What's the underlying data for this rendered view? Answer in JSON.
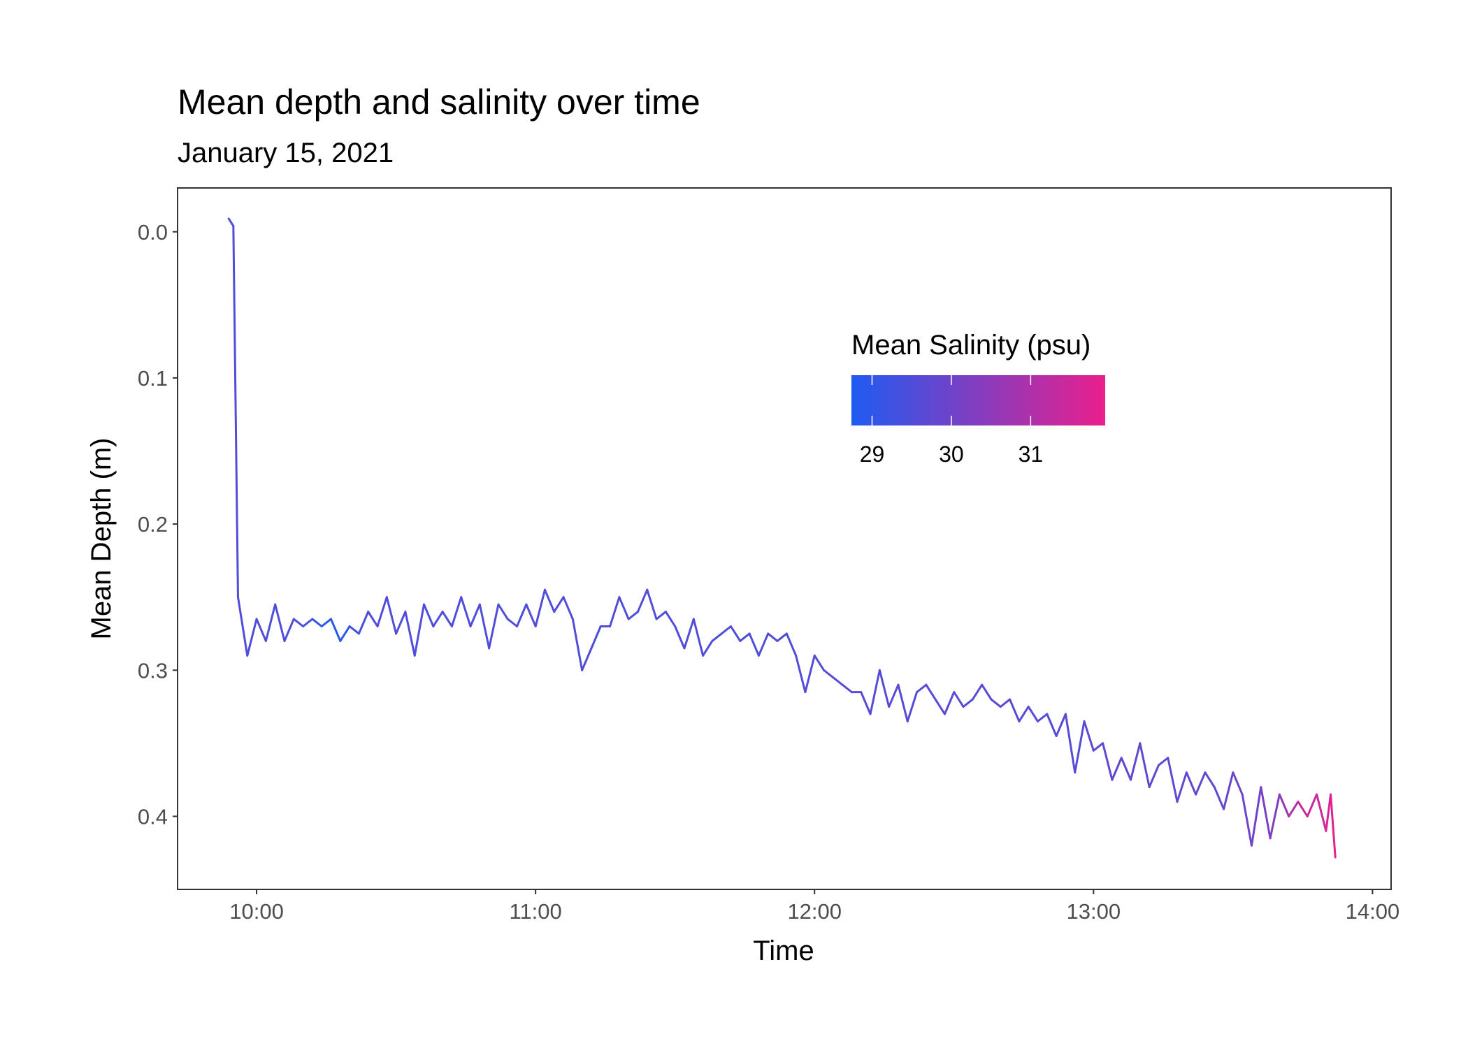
{
  "chart_data": {
    "type": "line",
    "title": "Mean depth and salinity over time",
    "subtitle": "January 15, 2021",
    "x_label": "Time",
    "y_label": "Mean Depth (m)",
    "x": [
      "09:54",
      "09:55",
      "09:56",
      "09:58",
      "10:00",
      "10:02",
      "10:04",
      "10:06",
      "10:08",
      "10:10",
      "10:12",
      "10:14",
      "10:16",
      "10:18",
      "10:20",
      "10:22",
      "10:24",
      "10:26",
      "10:28",
      "10:30",
      "10:32",
      "10:34",
      "10:36",
      "10:38",
      "10:40",
      "10:42",
      "10:44",
      "10:46",
      "10:48",
      "10:50",
      "10:52",
      "10:54",
      "10:56",
      "10:58",
      "11:00",
      "11:02",
      "11:04",
      "11:06",
      "11:08",
      "11:10",
      "11:12",
      "11:14",
      "11:16",
      "11:18",
      "11:20",
      "11:22",
      "11:24",
      "11:26",
      "11:28",
      "11:30",
      "11:32",
      "11:34",
      "11:36",
      "11:38",
      "11:40",
      "11:42",
      "11:44",
      "11:46",
      "11:48",
      "11:50",
      "11:52",
      "11:54",
      "11:56",
      "11:58",
      "12:00",
      "12:02",
      "12:04",
      "12:06",
      "12:08",
      "12:10",
      "12:12",
      "12:14",
      "12:16",
      "12:18",
      "12:20",
      "12:22",
      "12:24",
      "12:26",
      "12:28",
      "12:30",
      "12:32",
      "12:34",
      "12:36",
      "12:38",
      "12:40",
      "12:42",
      "12:44",
      "12:46",
      "12:48",
      "12:50",
      "12:52",
      "12:54",
      "12:56",
      "12:58",
      "13:00",
      "13:02",
      "13:04",
      "13:06",
      "13:08",
      "13:10",
      "13:12",
      "13:14",
      "13:16",
      "13:18",
      "13:20",
      "13:22",
      "13:24",
      "13:26",
      "13:28",
      "13:30",
      "13:32",
      "13:34",
      "13:36",
      "13:38",
      "13:40",
      "13:42",
      "13:44",
      "13:46",
      "13:48",
      "13:50",
      "13:51",
      "13:52"
    ],
    "values": [
      -0.009,
      -0.004,
      0.25,
      0.29,
      0.265,
      0.28,
      0.255,
      0.28,
      0.265,
      0.27,
      0.265,
      0.27,
      0.265,
      0.28,
      0.27,
      0.275,
      0.26,
      0.27,
      0.25,
      0.275,
      0.26,
      0.29,
      0.255,
      0.27,
      0.26,
      0.27,
      0.25,
      0.27,
      0.255,
      0.285,
      0.255,
      0.265,
      0.27,
      0.255,
      0.27,
      0.245,
      0.26,
      0.25,
      0.265,
      0.3,
      0.285,
      0.27,
      0.27,
      0.25,
      0.265,
      0.26,
      0.245,
      0.265,
      0.26,
      0.27,
      0.285,
      0.265,
      0.29,
      0.28,
      0.275,
      0.27,
      0.28,
      0.275,
      0.29,
      0.275,
      0.28,
      0.275,
      0.29,
      0.315,
      0.29,
      0.3,
      0.305,
      0.31,
      0.315,
      0.315,
      0.33,
      0.3,
      0.325,
      0.31,
      0.335,
      0.315,
      0.31,
      0.32,
      0.33,
      0.315,
      0.325,
      0.32,
      0.31,
      0.32,
      0.325,
      0.32,
      0.335,
      0.325,
      0.335,
      0.33,
      0.345,
      0.33,
      0.37,
      0.335,
      0.355,
      0.35,
      0.375,
      0.36,
      0.375,
      0.35,
      0.38,
      0.365,
      0.36,
      0.39,
      0.37,
      0.385,
      0.37,
      0.38,
      0.395,
      0.37,
      0.385,
      0.42,
      0.38,
      0.415,
      0.385,
      0.4,
      0.39,
      0.4,
      0.385,
      0.41,
      0.385,
      0.428
    ],
    "color_values": [
      29.5,
      29.5,
      29.5,
      29.5,
      29.5,
      29.5,
      29.5,
      29.5,
      29.5,
      29.5,
      29.2,
      29.0,
      28.9,
      28.8,
      29.1,
      29.3,
      29.5,
      29.5,
      29.5,
      29.5,
      29.5,
      29.5,
      29.5,
      29.5,
      29.5,
      29.5,
      29.5,
      29.5,
      29.5,
      29.5,
      29.5,
      29.5,
      29.5,
      29.5,
      29.5,
      29.5,
      29.5,
      29.5,
      29.5,
      29.5,
      29.5,
      29.5,
      29.5,
      29.5,
      29.5,
      29.5,
      29.5,
      29.5,
      29.5,
      29.5,
      29.5,
      29.5,
      29.5,
      29.5,
      29.5,
      29.5,
      29.5,
      29.5,
      29.5,
      29.5,
      29.5,
      29.5,
      29.5,
      29.5,
      29.6,
      29.6,
      29.6,
      29.6,
      29.6,
      29.6,
      29.6,
      29.6,
      29.6,
      29.6,
      29.6,
      29.6,
      29.6,
      29.6,
      29.6,
      29.6,
      29.6,
      29.6,
      29.6,
      29.6,
      29.6,
      29.6,
      29.6,
      29.6,
      29.6,
      29.6,
      29.6,
      29.6,
      29.6,
      29.6,
      29.8,
      29.8,
      29.8,
      29.8,
      29.8,
      29.8,
      29.8,
      29.8,
      29.8,
      29.8,
      29.8,
      29.8,
      29.8,
      29.8,
      29.8,
      30.0,
      30.0,
      30.0,
      30.0,
      30.3,
      30.3,
      30.8,
      31.2,
      31.5,
      31.3,
      31.6,
      31.7,
      31.9
    ],
    "xlim": [
      "09:43",
      "14:04"
    ],
    "xticks": [
      "10:00",
      "11:00",
      "12:00",
      "13:00",
      "14:00"
    ],
    "ylim": [
      -0.03,
      0.45
    ],
    "y_reversed": true,
    "yticks": [
      {
        "value": 0,
        "label": "0.0"
      },
      0.1,
      0.2,
      0.3,
      0.4
    ],
    "colorbar": {
      "title": "Mean Salinity (psu)",
      "lim": [
        28.74,
        31.94
      ],
      "ticks": [
        29,
        30,
        31
      ],
      "low_color": "#1f5bf2",
      "high_color": "#ea1f8c"
    }
  }
}
